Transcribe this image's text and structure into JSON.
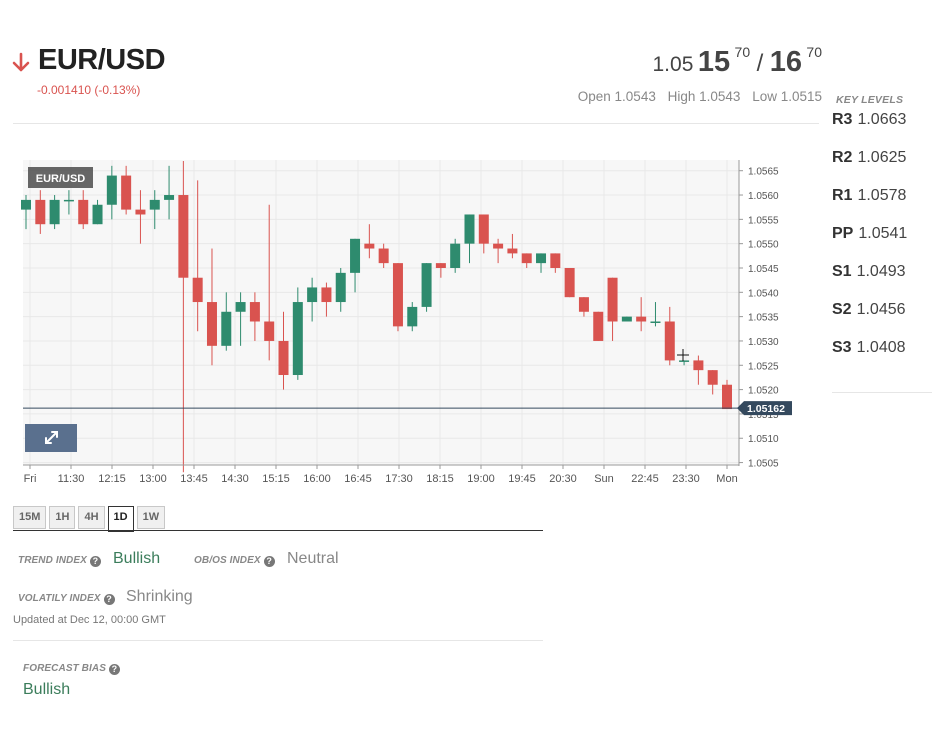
{
  "header": {
    "pair": "EUR/USD",
    "change": "-0.001410 (-0.13%)",
    "bid_prefix": "1.05",
    "bid_big": "15",
    "bid_pip": "70",
    "separator": "/",
    "ask_big": "16",
    "ask_pip": "70",
    "open": "Open 1.0543",
    "high": "High 1.0543",
    "low": "Low 1.0515"
  },
  "key_levels": {
    "title": "KEY LEVELS",
    "levels": [
      {
        "label": "R3",
        "value": "1.0663"
      },
      {
        "label": "R2",
        "value": "1.0625"
      },
      {
        "label": "R1",
        "value": "1.0578"
      },
      {
        "label": "PP",
        "value": "1.0541"
      },
      {
        "label": "S1",
        "value": "1.0493"
      },
      {
        "label": "S2",
        "value": "1.0456"
      },
      {
        "label": "S3",
        "value": "1.0408"
      }
    ]
  },
  "chart": {
    "symbol_badge": "EUR/USD",
    "price_tag": "1.05162",
    "colors": {
      "up": "#2e8b6e",
      "down": "#d9534f",
      "grid": "#e8e8e8",
      "bg": "#f7f7f7",
      "tag": "#34495e",
      "expand": "#5a708e"
    }
  },
  "chart_data": {
    "type": "candlestick",
    "y_ticks": [
      "1.0565",
      "1.0560",
      "1.0555",
      "1.0550",
      "1.0545",
      "1.0540",
      "1.0535",
      "1.0530",
      "1.0525",
      "1.0520",
      "1.0515",
      "1.0510",
      "1.0505"
    ],
    "ylim": [
      1.05045,
      1.05672
    ],
    "x_ticks": [
      "Fri",
      "11:30",
      "12:15",
      "13:00",
      "13:45",
      "14:30",
      "15:15",
      "16:00",
      "16:45",
      "17:30",
      "18:15",
      "19:00",
      "19:45",
      "20:30",
      "Sun",
      "22:45",
      "23:30",
      "Mon"
    ],
    "current_price": 1.05162,
    "candles": [
      {
        "o": 1.0557,
        "h": 1.056,
        "l": 1.0553,
        "c": 1.0559
      },
      {
        "o": 1.0559,
        "h": 1.0561,
        "l": 1.0552,
        "c": 1.0554
      },
      {
        "o": 1.0554,
        "h": 1.056,
        "l": 1.0553,
        "c": 1.0559
      },
      {
        "o": 1.0559,
        "h": 1.0561,
        "l": 1.0556,
        "c": 1.0559
      },
      {
        "o": 1.0559,
        "h": 1.0561,
        "l": 1.0553,
        "c": 1.0554
      },
      {
        "o": 1.0554,
        "h": 1.0559,
        "l": 1.0554,
        "c": 1.0558
      },
      {
        "o": 1.0558,
        "h": 1.0566,
        "l": 1.0555,
        "c": 1.0564
      },
      {
        "o": 1.0564,
        "h": 1.0566,
        "l": 1.0556,
        "c": 1.0557
      },
      {
        "o": 1.0557,
        "h": 1.0561,
        "l": 1.055,
        "c": 1.0556
      },
      {
        "o": 1.0557,
        "h": 1.0561,
        "l": 1.0553,
        "c": 1.0559
      },
      {
        "o": 1.0559,
        "h": 1.0566,
        "l": 1.0555,
        "c": 1.056
      },
      {
        "o": 1.056,
        "h": 1.0567,
        "l": 1.0503,
        "c": 1.0543
      },
      {
        "o": 1.0543,
        "h": 1.0563,
        "l": 1.0532,
        "c": 1.0538
      },
      {
        "o": 1.0538,
        "h": 1.0549,
        "l": 1.0525,
        "c": 1.0529
      },
      {
        "o": 1.0529,
        "h": 1.054,
        "l": 1.0528,
        "c": 1.0536
      },
      {
        "o": 1.0536,
        "h": 1.054,
        "l": 1.0529,
        "c": 1.0538
      },
      {
        "o": 1.0538,
        "h": 1.054,
        "l": 1.053,
        "c": 1.0534
      },
      {
        "o": 1.0534,
        "h": 1.0558,
        "l": 1.0526,
        "c": 1.053
      },
      {
        "o": 1.053,
        "h": 1.0536,
        "l": 1.052,
        "c": 1.0523
      },
      {
        "o": 1.0523,
        "h": 1.0541,
        "l": 1.0522,
        "c": 1.0538
      },
      {
        "o": 1.0538,
        "h": 1.0543,
        "l": 1.0534,
        "c": 1.0541
      },
      {
        "o": 1.0541,
        "h": 1.0542,
        "l": 1.0535,
        "c": 1.0538
      },
      {
        "o": 1.0538,
        "h": 1.0545,
        "l": 1.0536,
        "c": 1.0544
      },
      {
        "o": 1.0544,
        "h": 1.0551,
        "l": 1.054,
        "c": 1.0551
      },
      {
        "o": 1.055,
        "h": 1.0554,
        "l": 1.0547,
        "c": 1.0549
      },
      {
        "o": 1.0549,
        "h": 1.055,
        "l": 1.0545,
        "c": 1.0546
      },
      {
        "o": 1.0546,
        "h": 1.0546,
        "l": 1.0532,
        "c": 1.0533
      },
      {
        "o": 1.0533,
        "h": 1.0538,
        "l": 1.0532,
        "c": 1.0537
      },
      {
        "o": 1.0537,
        "h": 1.0546,
        "l": 1.0536,
        "c": 1.0546
      },
      {
        "o": 1.0546,
        "h": 1.0546,
        "l": 1.0543,
        "c": 1.0545
      },
      {
        "o": 1.0545,
        "h": 1.0551,
        "l": 1.0544,
        "c": 1.055
      },
      {
        "o": 1.055,
        "h": 1.0556,
        "l": 1.0546,
        "c": 1.0556
      },
      {
        "o": 1.0556,
        "h": 1.0556,
        "l": 1.0548,
        "c": 1.055
      },
      {
        "o": 1.055,
        "h": 1.0551,
        "l": 1.0546,
        "c": 1.0549
      },
      {
        "o": 1.0549,
        "h": 1.0552,
        "l": 1.0547,
        "c": 1.0548
      },
      {
        "o": 1.0548,
        "h": 1.0548,
        "l": 1.0545,
        "c": 1.0546
      },
      {
        "o": 1.0546,
        "h": 1.0548,
        "l": 1.0544,
        "c": 1.0548
      },
      {
        "o": 1.0548,
        "h": 1.0548,
        "l": 1.0544,
        "c": 1.0545
      },
      {
        "o": 1.0545,
        "h": 1.0545,
        "l": 1.0539,
        "c": 1.0539
      },
      {
        "o": 1.0539,
        "h": 1.0539,
        "l": 1.0535,
        "c": 1.0536
      },
      {
        "o": 1.0536,
        "h": 1.0536,
        "l": 1.053,
        "c": 1.053
      },
      {
        "o": 1.0543,
        "h": 1.0543,
        "l": 1.053,
        "c": 1.0534
      },
      {
        "o": 1.0534,
        "h": 1.0535,
        "l": 1.0534,
        "c": 1.0535
      },
      {
        "o": 1.0535,
        "h": 1.0539,
        "l": 1.0532,
        "c": 1.0534
      },
      {
        "o": 1.0534,
        "h": 1.0538,
        "l": 1.0533,
        "c": 1.0534
      },
      {
        "o": 1.0534,
        "h": 1.0537,
        "l": 1.0525,
        "c": 1.0526
      },
      {
        "o": 1.0526,
        "h": 1.0526,
        "l": 1.0525,
        "c": 1.0526
      },
      {
        "o": 1.0526,
        "h": 1.0527,
        "l": 1.0521,
        "c": 1.0524
      },
      {
        "o": 1.0524,
        "h": 1.0524,
        "l": 1.0519,
        "c": 1.0521
      },
      {
        "o": 1.0521,
        "h": 1.0522,
        "l": 1.0516,
        "c": 1.0516
      }
    ]
  },
  "timeframes": {
    "items": [
      "15M",
      "1H",
      "4H",
      "1D",
      "1W"
    ],
    "active": "1D"
  },
  "indices": {
    "trend_label": "TREND INDEX",
    "trend_value": "Bullish",
    "obos_label": "OB/OS INDEX",
    "obos_value": "Neutral",
    "volatility_label": "VOLATILY INDEX",
    "volatility_value": "Shrinking",
    "updated": "Updated at Dec 12, 00:00 GMT",
    "forecast_label": "FORECAST BIAS",
    "forecast_value": "Bullish",
    "help_glyph": "?"
  }
}
